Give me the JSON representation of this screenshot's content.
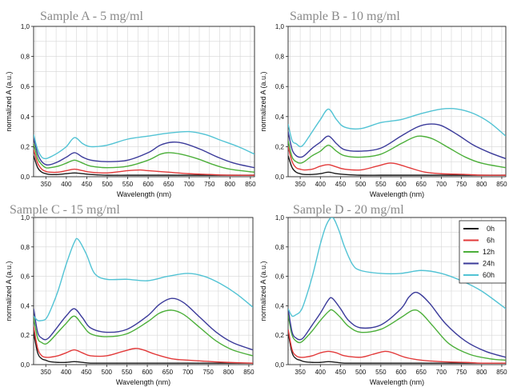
{
  "legend": [
    {
      "name": "0h",
      "color": "#1a1a1a"
    },
    {
      "name": "6h",
      "color": "#e23a3a"
    },
    {
      "name": "12h",
      "color": "#4caf3a"
    },
    {
      "name": "24h",
      "color": "#3b3b9a"
    },
    {
      "name": "60h",
      "color": "#52c3d4"
    }
  ],
  "chart_data": [
    {
      "type": "line",
      "title": "Sample A - 5 mg/ml",
      "xlabel": "Wavelength (nm)",
      "ylabel": "normalized A (a.u.)",
      "xlim": [
        320,
        860
      ],
      "ylim": [
        0,
        1.0
      ],
      "xticks": [
        350,
        400,
        450,
        500,
        550,
        600,
        650,
        700,
        750,
        800,
        850
      ],
      "yticks": [
        "0,0",
        "0,2",
        "0,4",
        "0,6",
        "0,8",
        "1,0"
      ],
      "grid": true,
      "series": [
        {
          "name": "0h",
          "x": [
            320,
            330,
            340,
            350,
            360,
            380,
            400,
            420,
            440,
            460,
            500,
            550,
            600,
            650,
            700,
            750,
            800,
            860
          ],
          "y": [
            0.14,
            0.06,
            0.03,
            0.02,
            0.015,
            0.015,
            0.02,
            0.025,
            0.02,
            0.015,
            0.01,
            0.01,
            0.01,
            0.01,
            0.01,
            0.01,
            0.01,
            0.01
          ]
        },
        {
          "name": "6h",
          "x": [
            320,
            330,
            340,
            350,
            360,
            380,
            400,
            420,
            440,
            460,
            500,
            550,
            580,
            600,
            650,
            700,
            750,
            800,
            860
          ],
          "y": [
            0.18,
            0.09,
            0.05,
            0.035,
            0.03,
            0.03,
            0.04,
            0.05,
            0.04,
            0.03,
            0.025,
            0.04,
            0.045,
            0.04,
            0.03,
            0.02,
            0.015,
            0.01,
            0.01
          ]
        },
        {
          "name": "12h",
          "x": [
            320,
            330,
            340,
            350,
            360,
            380,
            400,
            420,
            440,
            460,
            500,
            550,
            600,
            630,
            650,
            680,
            720,
            760,
            800,
            860
          ],
          "y": [
            0.22,
            0.12,
            0.08,
            0.06,
            0.06,
            0.07,
            0.09,
            0.11,
            0.09,
            0.07,
            0.06,
            0.07,
            0.11,
            0.15,
            0.16,
            0.15,
            0.12,
            0.08,
            0.05,
            0.03
          ]
        },
        {
          "name": "24h",
          "x": [
            320,
            330,
            340,
            350,
            360,
            380,
            400,
            420,
            440,
            460,
            500,
            550,
            600,
            630,
            660,
            690,
            730,
            770,
            810,
            860
          ],
          "y": [
            0.26,
            0.15,
            0.1,
            0.08,
            0.08,
            0.1,
            0.13,
            0.16,
            0.13,
            0.11,
            0.1,
            0.11,
            0.16,
            0.21,
            0.23,
            0.22,
            0.18,
            0.13,
            0.09,
            0.06
          ]
        },
        {
          "name": "60h",
          "x": [
            320,
            330,
            340,
            350,
            360,
            380,
            400,
            420,
            440,
            460,
            500,
            550,
            600,
            650,
            700,
            740,
            780,
            820,
            860
          ],
          "y": [
            0.28,
            0.18,
            0.13,
            0.12,
            0.13,
            0.16,
            0.2,
            0.26,
            0.22,
            0.2,
            0.21,
            0.25,
            0.27,
            0.29,
            0.3,
            0.28,
            0.24,
            0.2,
            0.15
          ]
        }
      ]
    },
    {
      "type": "line",
      "title": "Sample B - 10 mg/ml",
      "xlabel": "Wavelength (nm)",
      "ylabel": "normalized A (a.u.)",
      "xlim": [
        320,
        860
      ],
      "ylim": [
        0,
        1.0
      ],
      "xticks": [
        350,
        400,
        450,
        500,
        550,
        600,
        650,
        700,
        750,
        800,
        850
      ],
      "yticks": [
        "0,0",
        "0,2",
        "0,4",
        "0,6",
        "0,8",
        "1,0"
      ],
      "grid": true,
      "series": [
        {
          "name": "0h",
          "x": [
            320,
            330,
            340,
            350,
            360,
            380,
            400,
            420,
            440,
            460,
            500,
            550,
            600,
            650,
            700,
            750,
            800,
            860
          ],
          "y": [
            0.14,
            0.06,
            0.03,
            0.02,
            0.015,
            0.015,
            0.02,
            0.03,
            0.02,
            0.015,
            0.01,
            0.01,
            0.01,
            0.01,
            0.01,
            0.01,
            0.01,
            0.01
          ]
        },
        {
          "name": "6h",
          "x": [
            320,
            330,
            340,
            350,
            360,
            380,
            400,
            420,
            440,
            460,
            500,
            540,
            570,
            590,
            620,
            660,
            700,
            760,
            800,
            860
          ],
          "y": [
            0.2,
            0.1,
            0.06,
            0.05,
            0.045,
            0.05,
            0.07,
            0.08,
            0.065,
            0.05,
            0.045,
            0.07,
            0.09,
            0.085,
            0.06,
            0.03,
            0.02,
            0.015,
            0.01,
            0.01
          ]
        },
        {
          "name": "12h",
          "x": [
            320,
            330,
            340,
            350,
            360,
            380,
            400,
            420,
            440,
            460,
            500,
            550,
            600,
            630,
            650,
            680,
            720,
            760,
            800,
            860
          ],
          "y": [
            0.24,
            0.13,
            0.1,
            0.09,
            0.1,
            0.14,
            0.17,
            0.21,
            0.17,
            0.14,
            0.13,
            0.15,
            0.22,
            0.26,
            0.27,
            0.25,
            0.19,
            0.13,
            0.09,
            0.06
          ]
        },
        {
          "name": "24h",
          "x": [
            320,
            330,
            340,
            350,
            360,
            380,
            400,
            420,
            440,
            460,
            500,
            550,
            600,
            640,
            670,
            700,
            740,
            780,
            820,
            860
          ],
          "y": [
            0.3,
            0.18,
            0.14,
            0.13,
            0.14,
            0.19,
            0.23,
            0.27,
            0.22,
            0.18,
            0.17,
            0.19,
            0.27,
            0.33,
            0.35,
            0.34,
            0.28,
            0.21,
            0.16,
            0.12
          ]
        },
        {
          "name": "60h",
          "x": [
            320,
            330,
            340,
            350,
            360,
            380,
            400,
            420,
            440,
            460,
            500,
            550,
            600,
            650,
            700,
            740,
            780,
            820,
            860
          ],
          "y": [
            0.35,
            0.24,
            0.22,
            0.2,
            0.22,
            0.3,
            0.38,
            0.45,
            0.38,
            0.33,
            0.32,
            0.36,
            0.38,
            0.42,
            0.45,
            0.45,
            0.42,
            0.36,
            0.27
          ]
        }
      ]
    },
    {
      "type": "line",
      "title": "Sample C - 15 mg/ml",
      "xlabel": "Wavelength (nm)",
      "ylabel": "normalized A (a.u.)",
      "xlim": [
        320,
        860
      ],
      "ylim": [
        0,
        1.0
      ],
      "xticks": [
        350,
        400,
        450,
        500,
        550,
        600,
        650,
        700,
        750,
        800,
        850
      ],
      "yticks": [
        "0,0",
        "0,2",
        "0,4",
        "0,6",
        "0,8",
        "1,0"
      ],
      "grid": true,
      "series": [
        {
          "name": "0h",
          "x": [
            320,
            330,
            340,
            350,
            360,
            380,
            400,
            420,
            440,
            460,
            500,
            550,
            600,
            650,
            700,
            750,
            800,
            860
          ],
          "y": [
            0.22,
            0.08,
            0.04,
            0.03,
            0.02,
            0.015,
            0.015,
            0.02,
            0.015,
            0.01,
            0.01,
            0.01,
            0.01,
            0.01,
            0.01,
            0.01,
            0.01,
            0.01
          ]
        },
        {
          "name": "6h",
          "x": [
            320,
            330,
            340,
            350,
            360,
            380,
            400,
            420,
            440,
            460,
            500,
            540,
            570,
            590,
            620,
            660,
            700,
            760,
            800,
            860
          ],
          "y": [
            0.26,
            0.11,
            0.06,
            0.05,
            0.05,
            0.06,
            0.08,
            0.1,
            0.08,
            0.06,
            0.06,
            0.09,
            0.11,
            0.1,
            0.07,
            0.04,
            0.03,
            0.02,
            0.015,
            0.01
          ]
        },
        {
          "name": "12h",
          "x": [
            320,
            330,
            340,
            350,
            360,
            380,
            400,
            420,
            440,
            460,
            500,
            550,
            600,
            630,
            660,
            690,
            730,
            770,
            810,
            860
          ],
          "y": [
            0.32,
            0.18,
            0.15,
            0.14,
            0.16,
            0.22,
            0.28,
            0.33,
            0.27,
            0.21,
            0.19,
            0.21,
            0.29,
            0.35,
            0.37,
            0.34,
            0.25,
            0.16,
            0.1,
            0.06
          ]
        },
        {
          "name": "24h",
          "x": [
            320,
            330,
            340,
            350,
            360,
            380,
            400,
            420,
            440,
            460,
            500,
            550,
            600,
            630,
            660,
            690,
            730,
            770,
            810,
            860
          ],
          "y": [
            0.38,
            0.22,
            0.18,
            0.17,
            0.19,
            0.26,
            0.33,
            0.38,
            0.32,
            0.25,
            0.22,
            0.24,
            0.33,
            0.41,
            0.45,
            0.42,
            0.32,
            0.22,
            0.15,
            0.1
          ]
        },
        {
          "name": "60h",
          "x": [
            320,
            330,
            340,
            350,
            360,
            380,
            400,
            420,
            430,
            450,
            470,
            500,
            550,
            600,
            650,
            700,
            740,
            780,
            820,
            860
          ],
          "y": [
            0.33,
            0.3,
            0.3,
            0.31,
            0.36,
            0.5,
            0.68,
            0.83,
            0.85,
            0.75,
            0.62,
            0.58,
            0.58,
            0.57,
            0.6,
            0.62,
            0.6,
            0.55,
            0.48,
            0.39
          ]
        }
      ]
    },
    {
      "type": "line",
      "title": "Sample D - 20 mg/ml",
      "xlabel": "Wavelength (nm)",
      "ylabel": "normalized A (a.u.)",
      "xlim": [
        320,
        860
      ],
      "ylim": [
        0,
        1.0
      ],
      "xticks": [
        350,
        400,
        450,
        500,
        550,
        600,
        650,
        700,
        750,
        800,
        850
      ],
      "yticks": [
        "0,0",
        "0,2",
        "0,4",
        "0,6",
        "0,8",
        "1,0"
      ],
      "grid": true,
      "legend_position": "top-right",
      "series": [
        {
          "name": "0h",
          "x": [
            320,
            330,
            340,
            350,
            360,
            380,
            400,
            420,
            440,
            460,
            500,
            550,
            600,
            650,
            700,
            750,
            800,
            860
          ],
          "y": [
            0.22,
            0.08,
            0.04,
            0.03,
            0.02,
            0.015,
            0.015,
            0.02,
            0.015,
            0.01,
            0.01,
            0.01,
            0.01,
            0.01,
            0.01,
            0.01,
            0.01,
            0.01
          ]
        },
        {
          "name": "6h",
          "x": [
            320,
            330,
            340,
            350,
            360,
            380,
            400,
            420,
            440,
            460,
            500,
            530,
            560,
            580,
            610,
            650,
            700,
            760,
            800,
            860
          ],
          "y": [
            0.24,
            0.1,
            0.06,
            0.05,
            0.05,
            0.06,
            0.08,
            0.09,
            0.08,
            0.06,
            0.05,
            0.07,
            0.09,
            0.08,
            0.05,
            0.03,
            0.02,
            0.015,
            0.01,
            0.01
          ]
        },
        {
          "name": "12h",
          "x": [
            320,
            330,
            340,
            350,
            360,
            380,
            400,
            420,
            430,
            450,
            470,
            500,
            550,
            600,
            630,
            650,
            680,
            720,
            770,
            820,
            860
          ],
          "y": [
            0.34,
            0.2,
            0.16,
            0.15,
            0.17,
            0.23,
            0.3,
            0.36,
            0.37,
            0.32,
            0.26,
            0.22,
            0.24,
            0.32,
            0.37,
            0.35,
            0.26,
            0.14,
            0.07,
            0.04,
            0.03
          ]
        },
        {
          "name": "24h",
          "x": [
            320,
            330,
            340,
            350,
            360,
            380,
            400,
            420,
            430,
            450,
            470,
            500,
            550,
            600,
            620,
            640,
            670,
            710,
            760,
            810,
            860
          ],
          "y": [
            0.38,
            0.22,
            0.18,
            0.17,
            0.19,
            0.27,
            0.35,
            0.44,
            0.45,
            0.38,
            0.3,
            0.25,
            0.27,
            0.38,
            0.46,
            0.49,
            0.42,
            0.28,
            0.16,
            0.09,
            0.05
          ]
        },
        {
          "name": "60h",
          "x": [
            320,
            330,
            340,
            350,
            360,
            380,
            400,
            415,
            430,
            445,
            460,
            480,
            500,
            550,
            600,
            650,
            700,
            750,
            800,
            860
          ],
          "y": [
            0.38,
            0.33,
            0.34,
            0.36,
            0.42,
            0.6,
            0.82,
            0.95,
            1.0,
            0.92,
            0.8,
            0.68,
            0.64,
            0.62,
            0.62,
            0.64,
            0.62,
            0.57,
            0.5,
            0.38
          ]
        }
      ]
    }
  ]
}
